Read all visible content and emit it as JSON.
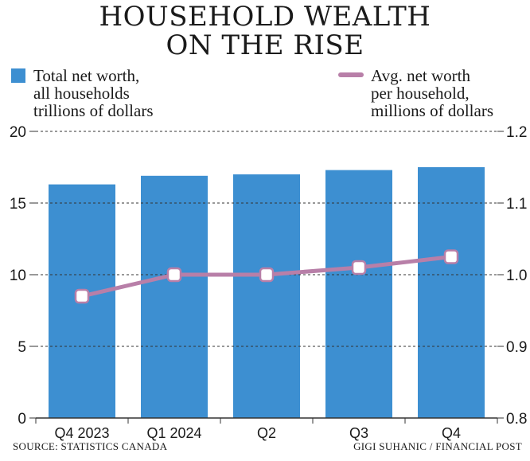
{
  "title_line1": "HOUSEHOLD WEALTH",
  "title_line2": "ON THE RISE",
  "legend": {
    "bars": [
      "Total net worth,",
      "all households",
      "trillions of dollars"
    ],
    "line": [
      "Avg. net worth",
      "per household,",
      "millions of dollars"
    ]
  },
  "footer": {
    "source": "SOURCE: STATISTICS CANADA",
    "credit": "GIGI SUHANIC / FINANCIAL POST"
  },
  "colors": {
    "bar": "#3d8fd1",
    "line": "#b87fa8",
    "grid": "#333333"
  },
  "chart_data": {
    "type": "bar+line",
    "categories": [
      "Q4 2023",
      "Q1 2024",
      "Q2",
      "Q3",
      "Q4"
    ],
    "series": [
      {
        "name": "Total net worth, all households",
        "type": "bar",
        "axis": "left",
        "values": [
          16.3,
          16.9,
          17.0,
          17.3,
          17.5
        ]
      },
      {
        "name": "Avg. net worth per household",
        "type": "line",
        "axis": "right",
        "values": [
          0.97,
          1.0,
          1.0,
          1.01,
          1.025
        ]
      }
    ],
    "y_left": {
      "ylim": [
        0,
        20
      ],
      "ticks": [
        "0",
        "5",
        "10",
        "15",
        "20"
      ]
    },
    "y_right": {
      "ylim": [
        0.8,
        1.2
      ],
      "ticks": [
        "0.8",
        "0.9",
        "1.0",
        "1.1",
        "1.2"
      ]
    },
    "grid": true,
    "legend_position": "top"
  }
}
